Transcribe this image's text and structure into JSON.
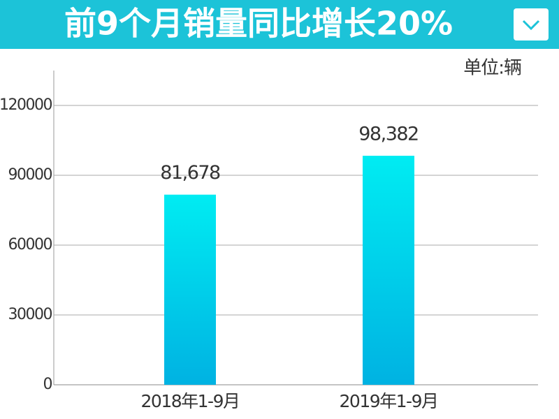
{
  "chart_data": {
    "type": "bar",
    "title": "前9个月销量同比增长20%",
    "unit_label": "单位:辆",
    "categories": [
      "2018年1-9月",
      "2019年1-9月"
    ],
    "values": [
      81678,
      98382
    ],
    "value_labels": [
      "81,678",
      "98,382"
    ],
    "color": "#00c8ea",
    "ylim": [
      0,
      135000
    ],
    "yticks": [
      0,
      30000,
      60000,
      90000,
      120000
    ],
    "grid": true
  }
}
